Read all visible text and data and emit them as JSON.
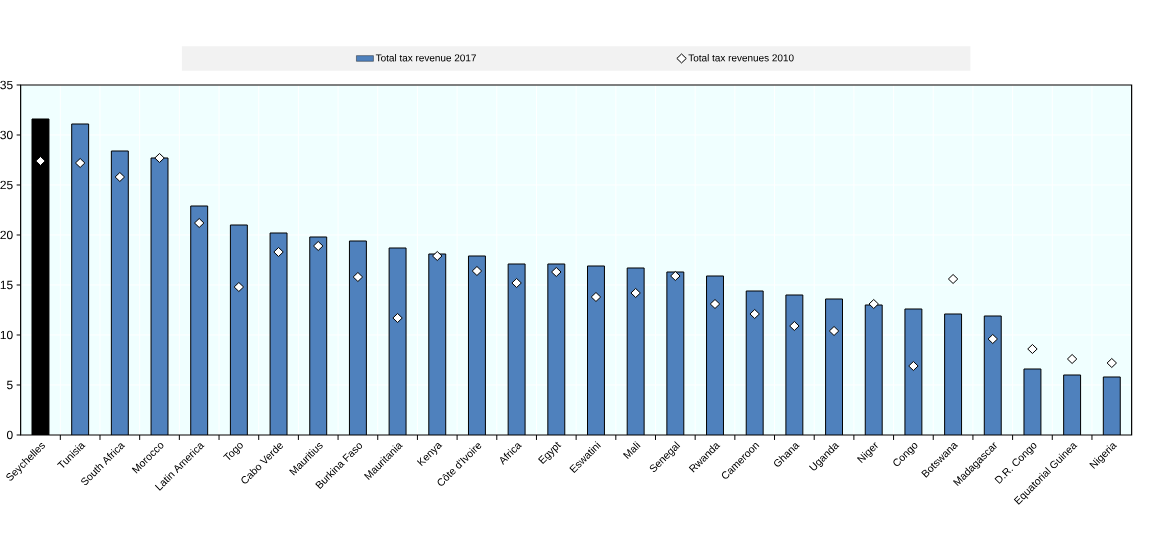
{
  "chart_data": {
    "type": "bar",
    "categories": [
      "Seychelles",
      "Tunisia",
      "South Africa",
      "Morocco",
      "Latin America",
      "Togo",
      "Cabo Verde",
      "Mauritius",
      "Burkina Faso",
      "Mauritania",
      "Kenya",
      "Côte d'Ivoire",
      "Africa",
      "Egypt",
      "Eswatini",
      "Mali",
      "Senegal",
      "Rwanda",
      "Cameroon",
      "Ghana",
      "Uganda",
      "Niger",
      "Congo",
      "Botswana",
      "Madagascar",
      "D.R. Congo",
      "Equatorial Guinea",
      "Nigeria"
    ],
    "series": [
      {
        "name": "Total tax revenue 2017",
        "color": "#4f81bd",
        "colors": [
          "#000000",
          "#4f81bd",
          "#4f81bd",
          "#4f81bd",
          "#4f81bd",
          "#4f81bd",
          "#4f81bd",
          "#4f81bd",
          "#4f81bd",
          "#4f81bd",
          "#4f81bd",
          "#4f81bd",
          "#4f81bd",
          "#4f81bd",
          "#4f81bd",
          "#4f81bd",
          "#4f81bd",
          "#4f81bd",
          "#4f81bd",
          "#4f81bd",
          "#4f81bd",
          "#4f81bd",
          "#4f81bd",
          "#4f81bd",
          "#4f81bd",
          "#4f81bd",
          "#4f81bd",
          "#4f81bd"
        ],
        "values": [
          31.6,
          31.1,
          28.4,
          27.7,
          22.9,
          21.0,
          20.2,
          19.8,
          19.4,
          18.7,
          18.1,
          17.9,
          17.1,
          17.1,
          16.9,
          16.7,
          16.3,
          15.9,
          14.4,
          14.0,
          13.6,
          13.0,
          12.6,
          12.1,
          11.9,
          6.6,
          6.0,
          5.8
        ]
      },
      {
        "name": "Total tax revenues 2010",
        "type": "scatter",
        "color": "#ffffff",
        "x": [
          "Seychelles",
          "Tunisia",
          "South Africa",
          "Morocco",
          "Latin America",
          "Togo",
          "Cabo Verde",
          "Mauritius",
          "Burkina Faso",
          "Mauritania",
          "Kenya",
          "Côte d'Ivoire",
          "Africa",
          "Egypt",
          "Eswatini",
          "Mali",
          "Senegal",
          "Rwanda",
          "Cameroon",
          "Ghana",
          "Uganda",
          "Niger",
          "Congo",
          "Botswana",
          "Madagascar",
          "D.R. Congo",
          "Equatorial Guinea",
          "Nigeria"
        ],
        "values": [
          27.4,
          27.2,
          25.8,
          27.7,
          21.2,
          14.8,
          18.3,
          18.9,
          15.8,
          11.7,
          17.9,
          16.4,
          15.2,
          16.3,
          13.8,
          14.2,
          15.9,
          13.1,
          12.1,
          10.9,
          10.4,
          13.1,
          6.9,
          15.6,
          9.6,
          8.6,
          7.6,
          7.2
        ]
      }
    ],
    "ylim": [
      0,
      35
    ],
    "yticks": [
      0,
      5,
      10,
      15,
      20,
      25,
      30,
      35
    ],
    "grid": true,
    "legend": "top",
    "marker": "diamond"
  }
}
